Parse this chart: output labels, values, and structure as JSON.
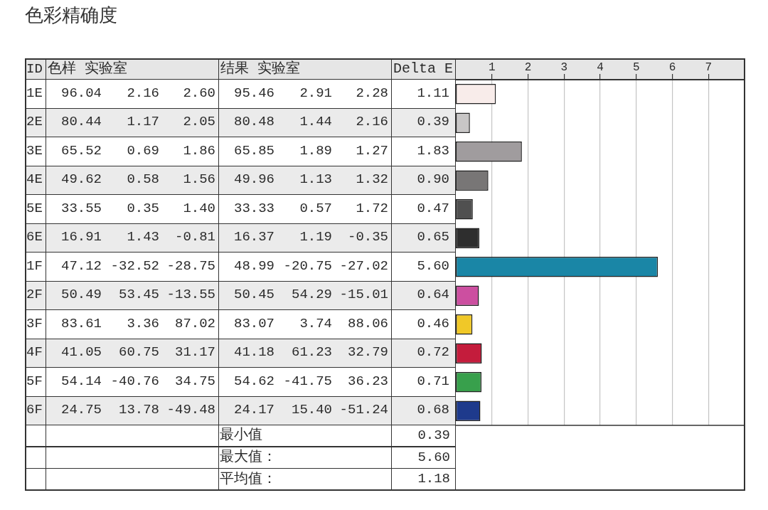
{
  "chart_data": [
    {
      "type": "heatmap",
      "title": "色彩精确度",
      "ylabel": "ID",
      "categories": [
        "色样 实验室",
        null,
        null,
        "结果 实验室",
        null,
        null,
        "Delta E"
      ],
      "y_categories": [
        "1E",
        "2E",
        "3E",
        "4E",
        "5E",
        "6E",
        "1F",
        "2F",
        "3F",
        "4F",
        "5F",
        "6F"
      ],
      "cells": [
        [
          96.04,
          2.16,
          2.6,
          95.46,
          2.91,
          2.28,
          1.11
        ],
        [
          80.44,
          1.17,
          2.05,
          80.48,
          1.44,
          2.16,
          0.39
        ],
        [
          65.52,
          0.69,
          1.86,
          65.85,
          1.89,
          1.27,
          1.83
        ],
        [
          49.62,
          0.58,
          1.56,
          49.96,
          1.13,
          1.32,
          0.9
        ],
        [
          33.55,
          0.35,
          1.4,
          33.33,
          0.57,
          1.72,
          0.47
        ],
        [
          16.91,
          1.43,
          -0.81,
          16.37,
          1.19,
          -0.35,
          0.65
        ],
        [
          47.12,
          -32.52,
          -28.75,
          48.99,
          -20.75,
          -27.02,
          5.6
        ],
        [
          50.49,
          53.45,
          -13.55,
          50.45,
          54.29,
          -15.01,
          0.64
        ],
        [
          83.61,
          3.36,
          87.02,
          83.07,
          3.74,
          88.06,
          0.46
        ],
        [
          41.05,
          60.75,
          31.17,
          41.18,
          61.23,
          32.79,
          0.72
        ],
        [
          54.14,
          -40.76,
          34.75,
          54.62,
          -41.75,
          36.23,
          0.71
        ],
        [
          24.75,
          13.78,
          -49.48,
          24.17,
          15.4,
          -51.24,
          0.68
        ]
      ],
      "cell_labels": [
        [
          "96.04",
          "2.16",
          "2.60",
          "95.46",
          "2.91",
          "2.28",
          "1.11"
        ],
        [
          "80.44",
          "1.17",
          "2.05",
          "80.48",
          "1.44",
          "2.16",
          "0.39"
        ],
        [
          "65.52",
          "0.69",
          "1.86",
          "65.85",
          "1.89",
          "1.27",
          "1.83"
        ],
        [
          "49.62",
          "0.58",
          "1.56",
          "49.96",
          "1.13",
          "1.32",
          "0.90"
        ],
        [
          "33.55",
          "0.35",
          "1.40",
          "33.33",
          "0.57",
          "1.72",
          "0.47"
        ],
        [
          "16.91",
          "1.43",
          "-0.81",
          "16.37",
          "1.19",
          "-0.35",
          "0.65"
        ],
        [
          "47.12",
          "-32.52",
          "-28.75",
          "48.99",
          "-20.75",
          "-27.02",
          "5.60"
        ],
        [
          "50.49",
          "53.45",
          "-13.55",
          "50.45",
          "54.29",
          "-15.01",
          "0.64"
        ],
        [
          "83.61",
          "3.36",
          "87.02",
          "83.07",
          "3.74",
          "88.06",
          "0.46"
        ],
        [
          "41.05",
          "60.75",
          "31.17",
          "41.18",
          "61.23",
          "32.79",
          "0.72"
        ],
        [
          "54.14",
          "-40.76",
          "34.75",
          "54.62",
          "-41.75",
          "36.23",
          "0.71"
        ],
        [
          "24.75",
          "13.78",
          "-49.48",
          "24.17",
          "15.40",
          "-51.24",
          "0.68"
        ]
      ],
      "annotations": [
        "最小值",
        "0.39",
        "最大值：",
        "5.60",
        "平均值：",
        "1.18"
      ]
    },
    {
      "type": "bar",
      "orientation": "horizontal",
      "categories": [
        null,
        null,
        null,
        null,
        null,
        null,
        null,
        null,
        null,
        null,
        null,
        null
      ],
      "values": [
        1.11,
        0.39,
        1.83,
        0.9,
        0.47,
        0.65,
        5.6,
        0.64,
        0.46,
        0.72,
        0.71,
        0.68
      ],
      "colors": [
        "#f8ecea",
        "#c8c6c6",
        "#a09c9e",
        "#787676",
        "#505050",
        "#2e2e2e",
        "#1a86a6",
        "#cc4fa0",
        "#f0c828",
        "#c41c3c",
        "#38a04c",
        "#1e3a8c"
      ],
      "xlim": [
        0,
        8
      ],
      "xticks": [
        1,
        2,
        3,
        4,
        5,
        6,
        7
      ],
      "grid": "x"
    }
  ]
}
